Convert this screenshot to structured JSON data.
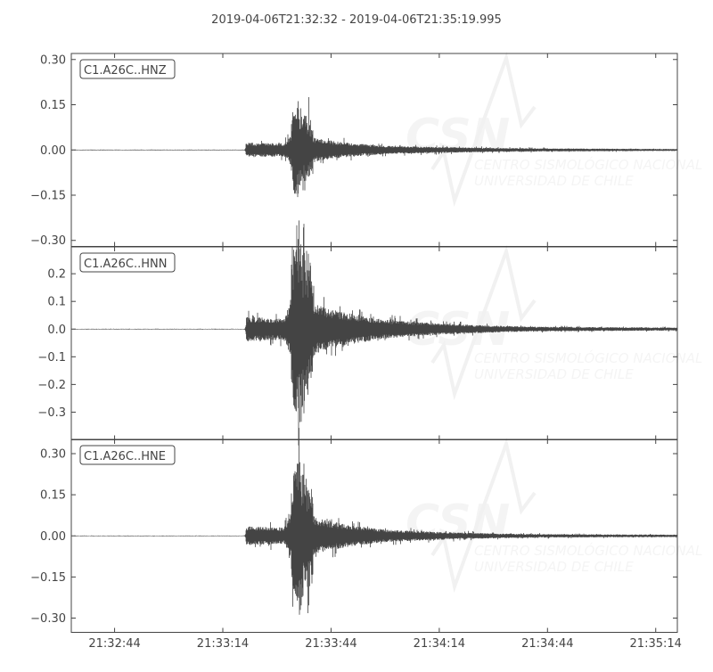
{
  "chart_data": {
    "type": "line",
    "title": "2019-04-06T21:32:32  -  2019-04-06T21:35:19.995",
    "xlim": [
      "21:32:32",
      "21:35:19.995"
    ],
    "xticks": [
      "21:32:44",
      "21:33:14",
      "21:33:44",
      "21:34:14",
      "21:34:44",
      "21:35:14"
    ],
    "line_color": "#444444",
    "grid": false,
    "watermark": {
      "logo": "CSN",
      "line1": "CENTRO SISMOLÓGICO NACIONAL",
      "line2": "UNIVERSIDAD DE CHILE"
    },
    "traces": [
      {
        "id": "C1.A26C..HNZ",
        "ylim": [
          -0.32,
          0.32
        ],
        "yticks": [
          0.3,
          0.15,
          0.0,
          -0.15,
          -0.3
        ],
        "ytick_labels": [
          "0.30",
          "0.15",
          "0.00",
          "−0.15",
          "−0.30"
        ],
        "peak_time": "21:33:34",
        "peak_max": 0.12,
        "peak_min": -0.15,
        "envelope": [
          [
            "21:32:32",
            0.001
          ],
          [
            "21:33:20",
            0.001
          ],
          [
            "21:33:20.5",
            0.022
          ],
          [
            "21:33:31",
            0.02
          ],
          [
            "21:33:34",
            0.08
          ],
          [
            "21:33:40",
            0.035
          ],
          [
            "21:34:00",
            0.012
          ],
          [
            "21:34:40",
            0.005
          ],
          [
            "21:35:20",
            0.003
          ]
        ]
      },
      {
        "id": "C1.A26C..HNN",
        "ylim": [
          -0.4,
          0.297
        ],
        "yticks": [
          0.2,
          0.1,
          0.0,
          -0.1,
          -0.2,
          -0.3
        ],
        "ytick_labels": [
          "0.2",
          "0.1",
          "0.0",
          "−0.1",
          "−0.2",
          "−0.3"
        ],
        "peak_time": "21:33:34",
        "peak_max": 0.29,
        "peak_min": -0.31,
        "envelope": [
          [
            "21:32:32",
            0.001
          ],
          [
            "21:33:20",
            0.001
          ],
          [
            "21:33:20.5",
            0.04
          ],
          [
            "21:33:31",
            0.035
          ],
          [
            "21:33:34",
            0.2
          ],
          [
            "21:33:40",
            0.08
          ],
          [
            "21:34:00",
            0.03
          ],
          [
            "21:34:40",
            0.008
          ],
          [
            "21:35:20",
            0.005
          ]
        ]
      },
      {
        "id": "C1.A26C..HNE",
        "ylim": [
          -0.352,
          0.352
        ],
        "yticks": [
          0.3,
          0.15,
          0.0,
          -0.15,
          -0.3
        ],
        "ytick_labels": [
          "0.30",
          "0.15",
          "0.00",
          "−0.15",
          "−0.30"
        ],
        "peak_time": "21:33:34",
        "peak_max": 0.24,
        "peak_min": -0.22,
        "envelope": [
          [
            "21:32:32",
            0.001
          ],
          [
            "21:33:20",
            0.001
          ],
          [
            "21:33:20.5",
            0.032
          ],
          [
            "21:33:31",
            0.028
          ],
          [
            "21:33:34",
            0.16
          ],
          [
            "21:33:40",
            0.06
          ],
          [
            "21:34:00",
            0.02
          ],
          [
            "21:34:40",
            0.006
          ],
          [
            "21:35:20",
            0.004
          ]
        ]
      }
    ]
  }
}
